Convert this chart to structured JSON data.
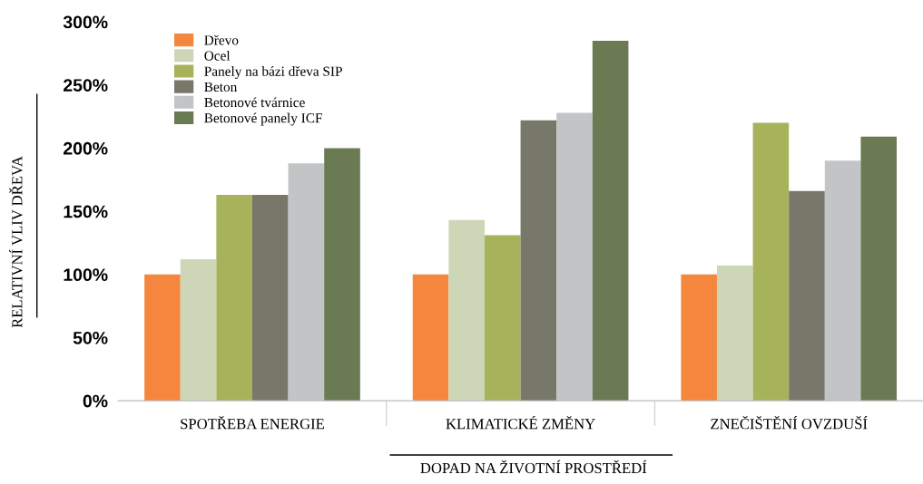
{
  "chart_data": {
    "type": "bar",
    "categories": [
      "SPOTŘEBA ENERGIE",
      "KLIMATICKÉ ZMĚNY",
      "ZNEČIŠTĚNÍ OVZDUŠÍ"
    ],
    "series": [
      {
        "name": "Dřevo",
        "color": "#f4873d",
        "values": [
          100,
          100,
          100
        ]
      },
      {
        "name": "Ocel",
        "color": "#cdd7b8",
        "values": [
          112,
          143,
          107
        ]
      },
      {
        "name": "Panely na bázi dřeva SIP",
        "color": "#a6b35b",
        "values": [
          163,
          131,
          220
        ]
      },
      {
        "name": "Beton",
        "color": "#77776a",
        "values": [
          163,
          222,
          166
        ]
      },
      {
        "name": "Betonové tvárnice",
        "color": "#c2c4c6",
        "values": [
          188,
          228,
          190
        ]
      },
      {
        "name": "Betonové panely ICF",
        "color": "#6a7a52",
        "values": [
          200,
          285,
          209
        ]
      }
    ],
    "ylabel": "RELATIVNÍ VLIV DŘEVA",
    "xlabel": "DOPAD NA ŽIVOTNÍ PROSTŘEDÍ",
    "ylim": [
      0,
      300
    ],
    "yticks": [
      {
        "value": 0,
        "label": "0%"
      },
      {
        "value": 50,
        "label": "50%"
      },
      {
        "value": 100,
        "label": "100%"
      },
      {
        "value": 150,
        "label": "150%"
      },
      {
        "value": 200,
        "label": "200%"
      },
      {
        "value": 250,
        "label": "250%"
      },
      {
        "value": 300,
        "label": "300%"
      }
    ],
    "grid": false,
    "legend": "top left"
  }
}
